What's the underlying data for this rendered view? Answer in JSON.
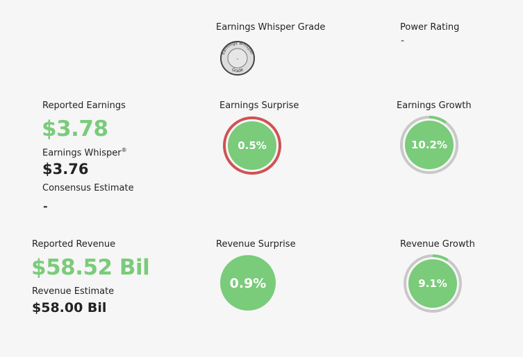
{
  "whisper_grade": {
    "label": "Earnings Whisper Grade",
    "badge_text_top": "Earnings Whisper",
    "badge_text_bottom": "Grade",
    "badge_value": "-"
  },
  "power_rating": {
    "label": "Power Rating",
    "value": "-"
  },
  "earnings": {
    "reported_label": "Reported Earnings",
    "reported_value": "$3.78",
    "whisper_label": "Earnings Whisper",
    "whisper_reg": "®",
    "whisper_value": "$3.76",
    "consensus_label": "Consensus Estimate",
    "consensus_value": "-",
    "surprise_label": "Earnings Surprise",
    "surprise_value": "0.5%",
    "surprise_ring_fraction": 1.0,
    "growth_label": "Earnings Growth",
    "growth_value": "10.2%",
    "growth_ring_fraction": 0.102
  },
  "revenue": {
    "reported_label": "Reported Revenue",
    "reported_value": "$58.52 Bil",
    "estimate_label": "Revenue Estimate",
    "estimate_value": "$58.00 Bil",
    "surprise_label": "Revenue Surprise",
    "surprise_value": "0.9%",
    "growth_label": "Revenue Growth",
    "growth_value": "9.1%",
    "growth_ring_fraction": 0.091
  },
  "colors": {
    "green": "#7acb7a",
    "red_ring": "#d05252",
    "gray_ring": "#c8c8c8",
    "background": "#f6f6f6"
  }
}
